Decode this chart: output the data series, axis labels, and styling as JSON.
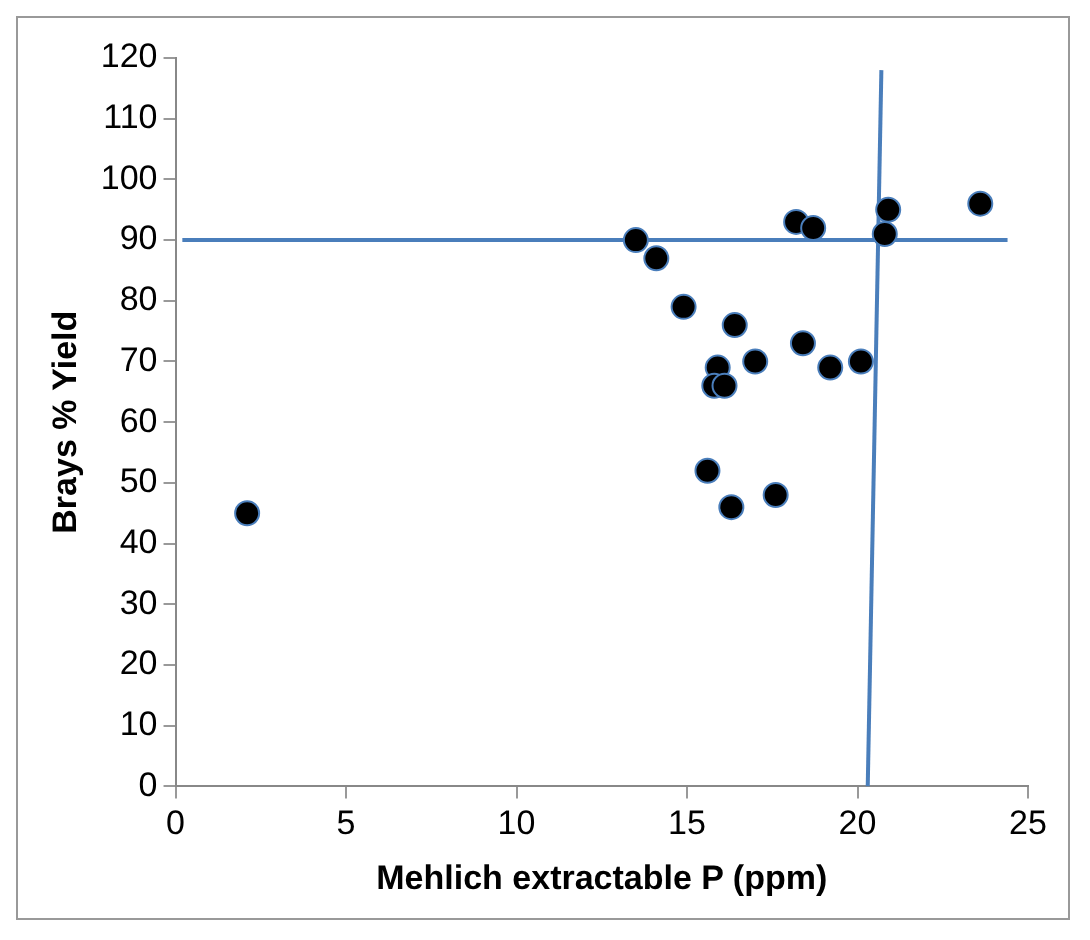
{
  "chart_data": {
    "type": "scatter",
    "xlabel": "Mehlich extractable P (ppm)",
    "ylabel": "Brays % Yield",
    "xlim": [
      0,
      25
    ],
    "xticks": [
      0,
      5,
      10,
      15,
      20,
      25
    ],
    "ylim": [
      0,
      120
    ],
    "yticks": [
      0,
      10,
      20,
      30,
      40,
      50,
      60,
      70,
      80,
      90,
      100,
      110,
      120
    ],
    "grid": false,
    "legend": false,
    "marker": "circle",
    "series": [
      {
        "color": "#000000",
        "x": [
          2.1,
          13.5,
          14.1,
          14.9,
          16.4,
          15.9,
          15.8,
          16.1,
          17.0,
          18.4,
          19.2,
          20.1,
          15.6,
          16.3,
          17.6,
          18.2,
          18.7,
          20.9,
          20.8,
          23.6
        ],
        "values": [
          45,
          90,
          87,
          79,
          76,
          69,
          66,
          66,
          70,
          73,
          69,
          70,
          52,
          46,
          48,
          93,
          92,
          95,
          91,
          96
        ]
      },
      {
        "type": "line",
        "color": "#4a7ebb",
        "marker": "none",
        "x": [
          0.2,
          24.4
        ],
        "values": [
          90,
          90
        ]
      },
      {
        "type": "line",
        "color": "#4a7ebb",
        "marker": "none",
        "x": [
          20.3,
          20.7
        ],
        "values": [
          0,
          118
        ]
      }
    ]
  }
}
